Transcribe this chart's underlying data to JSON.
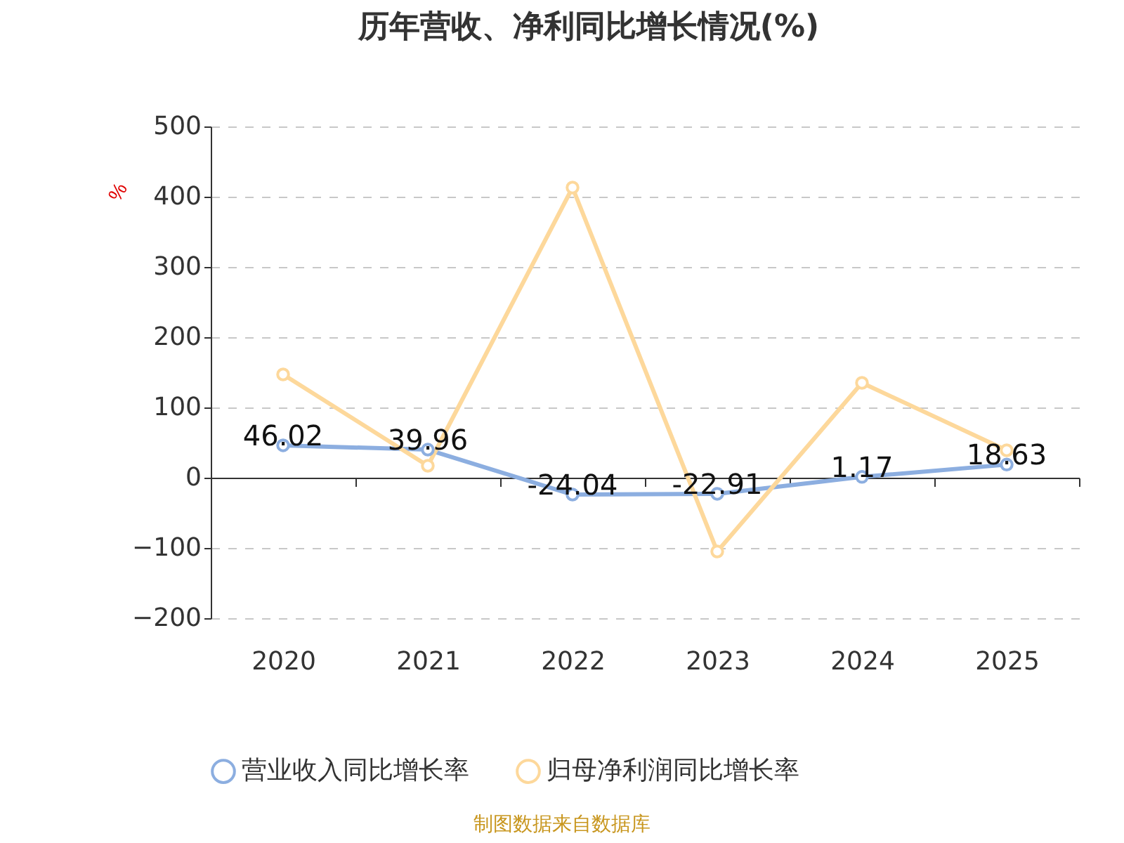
{
  "chart_data": {
    "type": "line",
    "title": "历年营收、净利同比增长情况(%)",
    "ylabel": "%",
    "categories": [
      "2020",
      "2021",
      "2022",
      "2023",
      "2024",
      "2025"
    ],
    "series": [
      {
        "name": "营业收入同比增长率",
        "color": "#8caee0",
        "values": [
          46.02,
          39.96,
          -24.04,
          -22.91,
          1.17,
          18.63
        ],
        "value_labels": [
          "46.02",
          "39.96",
          "-24.04",
          "-22.91",
          "1.17",
          "18.63"
        ]
      },
      {
        "name": "归母净利润同比增长率",
        "color": "#fdd89b",
        "values": [
          147,
          17,
          413,
          -105,
          135,
          39
        ]
      }
    ],
    "ylim": [
      -200,
      500
    ],
    "yticks": [
      -200,
      -100,
      0,
      100,
      200,
      300,
      400,
      500
    ],
    "grid": "y",
    "legend": "bottom",
    "marker": "circle",
    "line_style": "solid",
    "annotations": [
      "制图数据来自数据库"
    ]
  }
}
